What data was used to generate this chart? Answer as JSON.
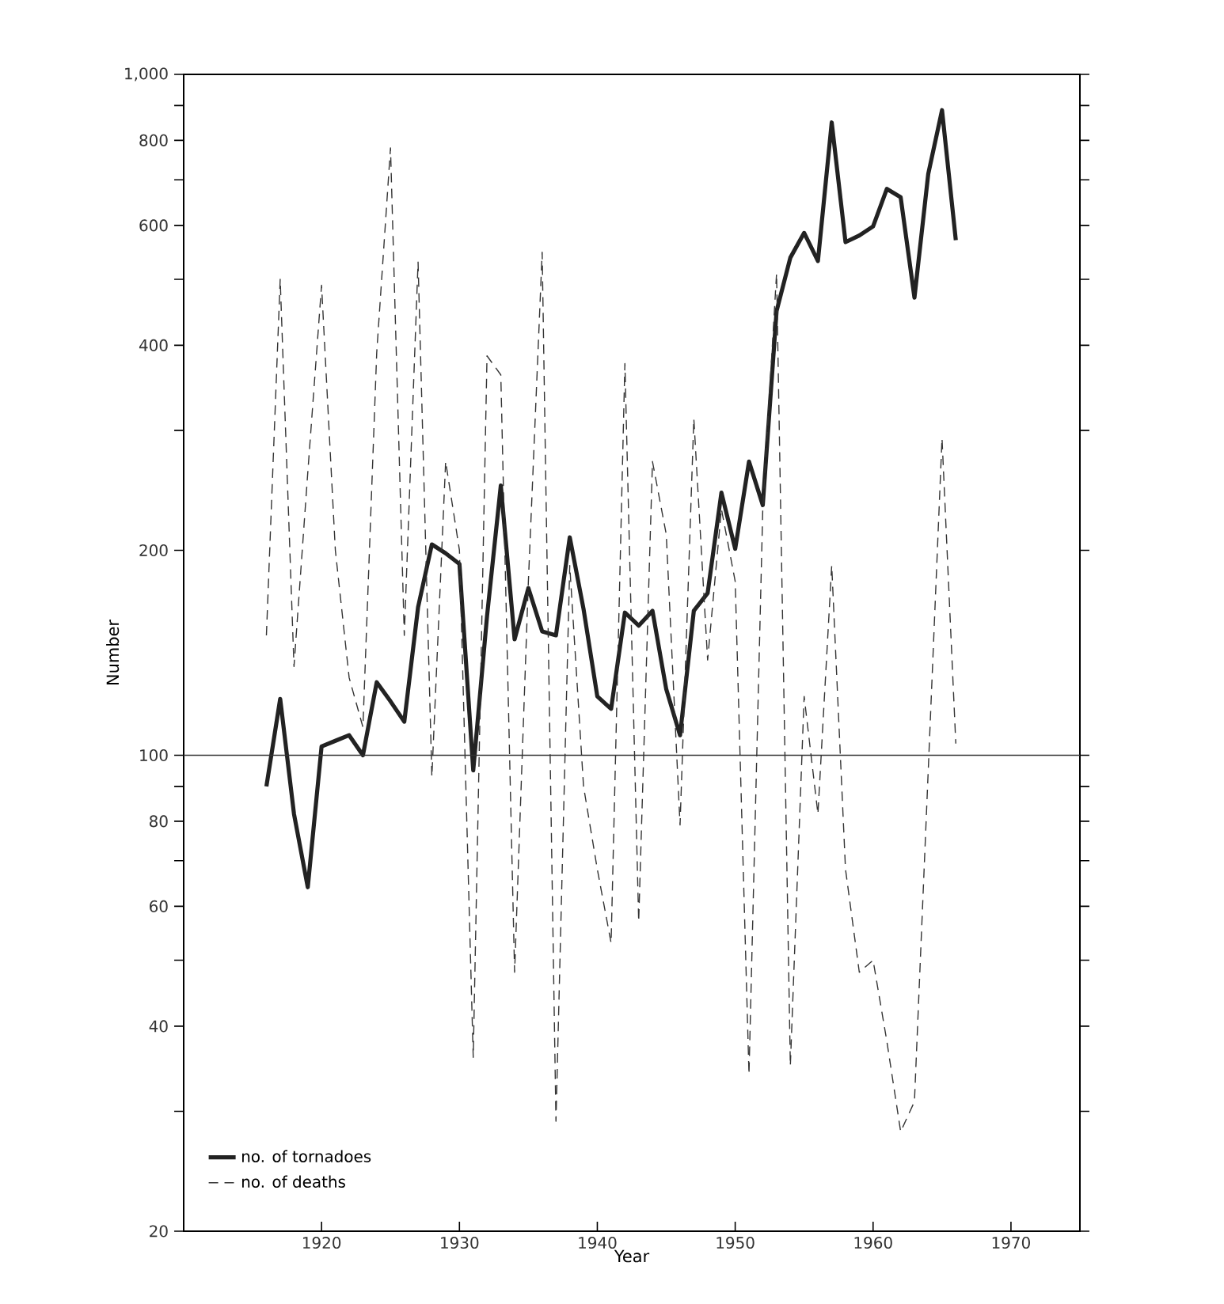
{
  "chart_data": {
    "type": "line",
    "xlabel": "Year",
    "ylabel": "Number",
    "log": "y",
    "grid": false,
    "legend": "bottom left",
    "marker": "none",
    "xlim": [
      1910,
      1975
    ],
    "xticks": [
      1920,
      1930,
      1940,
      1950,
      1960,
      1970
    ],
    "ylim": [
      20,
      1000
    ],
    "yticks": [
      20,
      {
        "value": 30,
        "label": null
      },
      40,
      {
        "value": 50,
        "label": null
      },
      60,
      {
        "value": 70,
        "label": null
      },
      80,
      {
        "value": 90,
        "label": null
      },
      100,
      200,
      {
        "value": 300,
        "label": null
      },
      400,
      {
        "value": 500,
        "label": null
      },
      600,
      {
        "value": 700,
        "label": null
      },
      800,
      {
        "value": 900,
        "label": null
      },
      {
        "value": 1000,
        "label": "1,000"
      }
    ],
    "x": [
      1916,
      1917,
      1918,
      1919,
      1920,
      1921,
      1922,
      1923,
      1924,
      1925,
      1926,
      1927,
      1928,
      1929,
      1930,
      1931,
      1932,
      1933,
      1934,
      1935,
      1936,
      1937,
      1938,
      1939,
      1940,
      1941,
      1942,
      1943,
      1944,
      1945,
      1946,
      1947,
      1948,
      1949,
      1950,
      1951,
      1952,
      1953,
      1954,
      1955,
      1956,
      1957,
      1958,
      1959,
      1960,
      1961,
      1962,
      1963,
      1964,
      1965,
      1966
    ],
    "ref_lines": [
      {
        "axis": "y",
        "value": 100,
        "label": null,
        "color": "#333333",
        "line_style": "solid"
      }
    ],
    "series": [
      {
        "name": "no. of tornadoes",
        "color": "#222222",
        "line_style": "solid",
        "values": [
          90,
          121,
          82,
          64,
          103,
          105,
          107,
          100,
          128,
          120,
          112,
          165,
          204,
          198,
          191,
          95,
          160,
          249,
          148,
          176,
          152,
          150,
          209,
          164,
          122,
          117,
          162,
          155,
          163,
          125,
          107,
          163,
          173,
          243,
          201,
          270,
          233,
          449,
          538,
          585,
          532,
          850,
          567,
          580,
          598,
          679,
          660,
          470,
          714,
          886,
          571
        ]
      },
      {
        "name": "no. of deaths",
        "color": "#333333",
        "line_style": "dashed",
        "values": [
          150,
          500,
          135,
          260,
          490,
          200,
          130,
          110,
          390,
          780,
          150,
          530,
          93,
          270,
          200,
          36,
          386,
          362,
          48,
          180,
          548,
          29,
          190,
          90,
          68,
          53,
          376,
          57,
          270,
          211,
          79,
          312,
          138,
          230,
          180,
          34,
          230,
          510,
          35,
          122,
          82,
          190,
          68,
          48,
          50,
          38,
          28,
          31,
          95,
          292,
          104
        ]
      }
    ]
  }
}
